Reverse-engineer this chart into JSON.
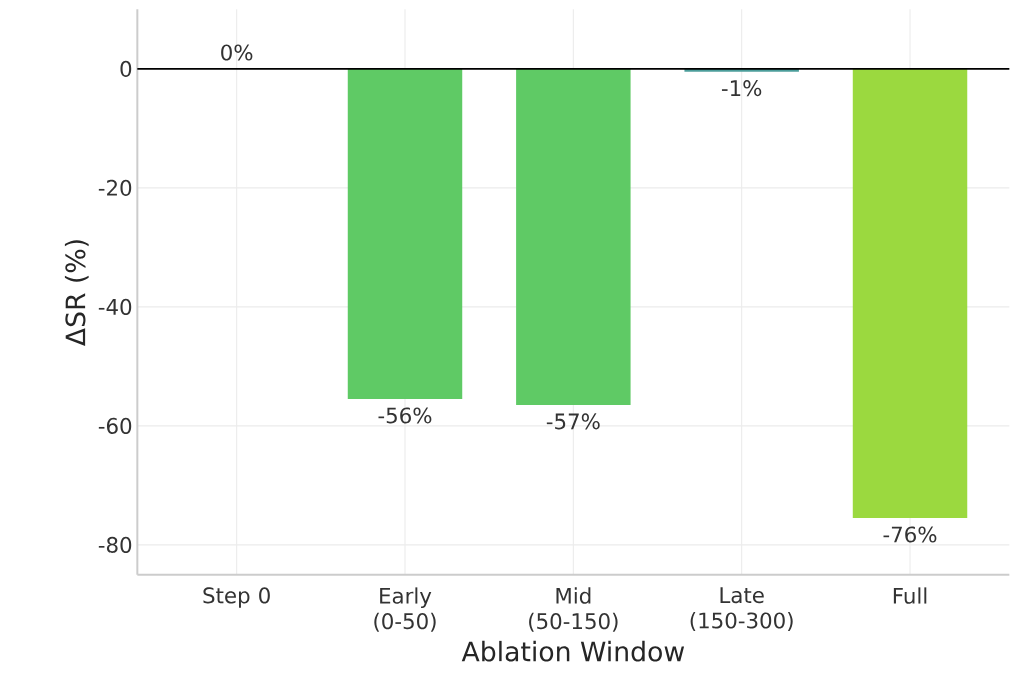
{
  "chart_data": {
    "type": "bar",
    "xlabel": "Ablation Window",
    "ylabel": "ΔSR (%)",
    "categories": [
      "Step 0",
      "Early (0-50)",
      "Mid (50-150)",
      "Late (150-300)",
      "Full"
    ],
    "values": [
      0,
      -55.5,
      -56.5,
      -0.5,
      -75.5
    ],
    "colors": [
      "#4c9e9b",
      "#5fca65",
      "#5fca65",
      "#4c9e9b",
      "#9bd93f"
    ],
    "value_labels": [
      "0%",
      "-56%",
      "-57%",
      "-1%",
      "-76%"
    ],
    "ylim": [
      -85,
      10
    ],
    "yticks": [
      -80,
      -60,
      -40,
      -20,
      0
    ],
    "ref_lines": [
      {
        "axis": "y",
        "value": 0,
        "color": "#000000"
      }
    ],
    "grid": true
  }
}
